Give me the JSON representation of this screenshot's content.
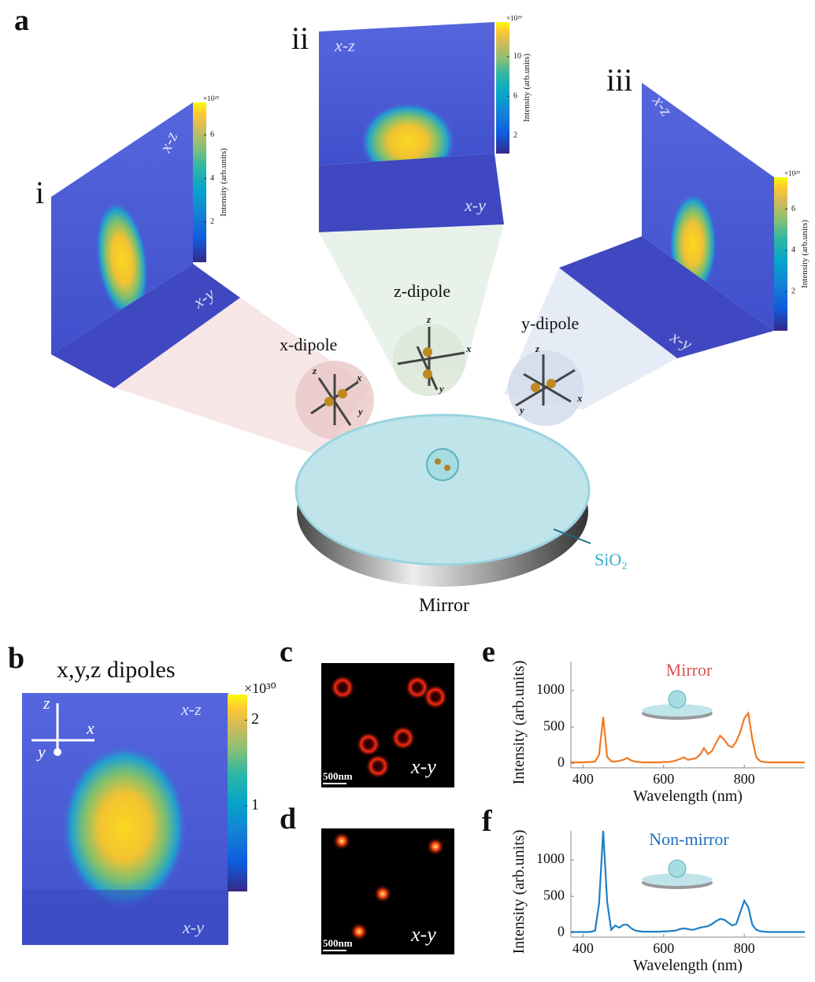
{
  "figure": {
    "a": {
      "label": "a",
      "panels": [
        {
          "label": "i",
          "faces": [
            "x-z",
            "x-y"
          ],
          "colorbar": {
            "exponent": "×10²⁹",
            "title": "Intensity (arb.units)",
            "lim": [
              0.15,
              7.5
            ],
            "ticks": [
              2,
              4,
              6
            ]
          }
        },
        {
          "label": "ii",
          "faces": [
            "x-z",
            "x-y"
          ],
          "colorbar": {
            "exponent": "×10²⁹",
            "title": "Intensity (arb.units)",
            "lim": [
              0.2,
              13.5
            ],
            "ticks": [
              2,
              6,
              10
            ]
          }
        },
        {
          "label": "iii",
          "faces": [
            "x-z",
            "x-y"
          ],
          "colorbar": {
            "exponent": "×10²⁹",
            "title": "Intensity (arb.units)",
            "lim": [
              0.1,
              7.55
            ],
            "ticks": [
              2,
              4,
              6
            ]
          }
        }
      ],
      "dipoles": [
        {
          "label": "x-dipole",
          "axes": [
            "z",
            "x",
            "y"
          ]
        },
        {
          "label": "z-dipole",
          "axes": [
            "z",
            "x",
            "y"
          ]
        },
        {
          "label": "y-dipole",
          "axes": [
            "z",
            "x",
            "y"
          ]
        }
      ],
      "substrate": "SiO₂",
      "mirror": "Mirror"
    },
    "b": {
      "label": "b",
      "title": "x,y,z dipoles",
      "axes": [
        "z",
        "x",
        "y"
      ],
      "faces": [
        "x-z",
        "x-y"
      ],
      "colorbar": {
        "exponent": "×10³⁰",
        "lim": [
          0,
          2.3
        ],
        "ticks": [
          1,
          2
        ]
      }
    },
    "c": {
      "label": "c",
      "scale": "500nm",
      "plane": "x-y"
    },
    "d": {
      "label": "d",
      "scale": "500nm",
      "plane": "x-y"
    }
  },
  "chart_data": [
    {
      "type": "line",
      "panel": "e",
      "annotation": "Mirror",
      "annotation_color": "#d9534f",
      "xlabel": "Wavelength (nm)",
      "ylabel": "Intensity (arb.units)",
      "xlim": [
        370,
        950
      ],
      "ylim": [
        -60,
        1400
      ],
      "xticks": [
        400,
        600,
        800
      ],
      "yticks": [
        0,
        500,
        1000
      ],
      "x": [
        370,
        380,
        390,
        400,
        410,
        420,
        430,
        440,
        450,
        460,
        470,
        480,
        490,
        500,
        510,
        520,
        530,
        540,
        550,
        560,
        570,
        580,
        590,
        600,
        610,
        620,
        630,
        640,
        650,
        660,
        670,
        680,
        690,
        700,
        710,
        720,
        730,
        740,
        750,
        760,
        770,
        780,
        790,
        800,
        810,
        820,
        830,
        840,
        850,
        860,
        870,
        880,
        890,
        900,
        910,
        920,
        930,
        940,
        950
      ],
      "series": [
        {
          "color": "#f07a22",
          "values": [
            20,
            15,
            15,
            15,
            20,
            20,
            25,
            120,
            640,
            90,
            30,
            25,
            35,
            50,
            75,
            40,
            25,
            20,
            15,
            15,
            15,
            15,
            15,
            20,
            20,
            25,
            40,
            60,
            85,
            50,
            60,
            70,
            120,
            210,
            130,
            170,
            280,
            380,
            330,
            250,
            220,
            300,
            430,
            620,
            690,
            330,
            80,
            30,
            20,
            15,
            15,
            15,
            15,
            15,
            15,
            15,
            15,
            15,
            15
          ]
        }
      ]
    },
    {
      "type": "line",
      "panel": "f",
      "annotation": "Non-mirror",
      "annotation_color": "#1f6fbf",
      "xlabel": "Wavelength (nm)",
      "ylabel": "Intensity (arb.units)",
      "xlim": [
        370,
        950
      ],
      "ylim": [
        -60,
        1400
      ],
      "xticks": [
        400,
        600,
        800
      ],
      "yticks": [
        0,
        500,
        1000
      ],
      "x": [
        370,
        380,
        390,
        400,
        410,
        420,
        430,
        440,
        450,
        460,
        470,
        480,
        490,
        500,
        510,
        520,
        530,
        540,
        550,
        560,
        570,
        580,
        590,
        600,
        610,
        620,
        630,
        640,
        650,
        660,
        670,
        680,
        690,
        700,
        710,
        720,
        730,
        740,
        750,
        760,
        770,
        780,
        790,
        800,
        810,
        820,
        830,
        840,
        850,
        860,
        870,
        880,
        890,
        900,
        910,
        920,
        930,
        940,
        950
      ],
      "series": [
        {
          "color": "#1f7fc4",
          "values": [
            10,
            10,
            10,
            10,
            10,
            15,
            30,
            400,
            1400,
            420,
            40,
            100,
            70,
            110,
            110,
            60,
            30,
            20,
            15,
            15,
            15,
            15,
            15,
            20,
            20,
            25,
            30,
            50,
            60,
            50,
            40,
            50,
            70,
            80,
            90,
            120,
            160,
            190,
            180,
            140,
            100,
            120,
            280,
            440,
            350,
            110,
            40,
            20,
            15,
            10,
            10,
            10,
            10,
            10,
            10,
            10,
            10,
            10,
            10
          ]
        }
      ]
    }
  ]
}
